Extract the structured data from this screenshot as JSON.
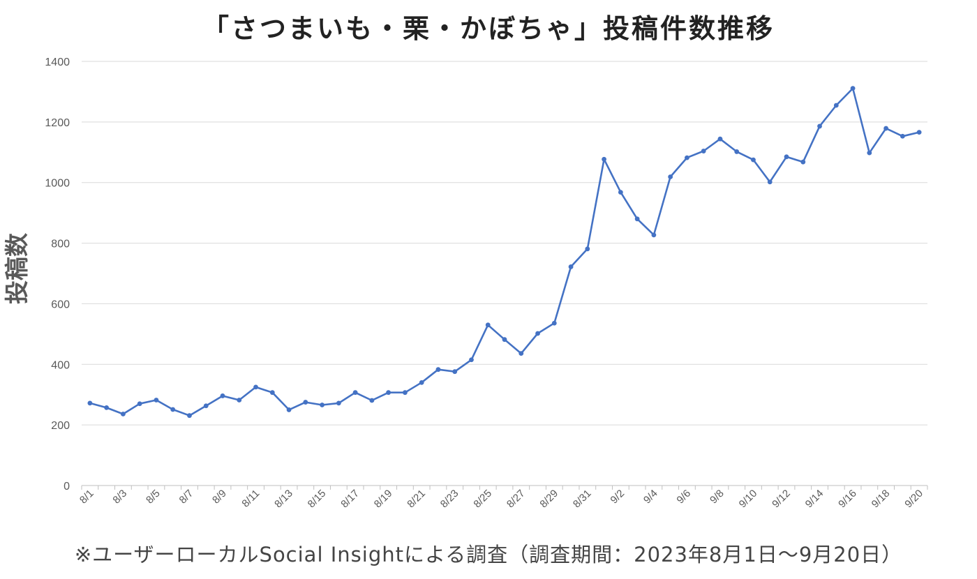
{
  "chart_data": {
    "type": "line",
    "title": "「さつまいも・栗・かぼちゃ」投稿件数推移",
    "xlabel": "",
    "ylabel": "投稿数",
    "ylim": [
      0,
      1400
    ],
    "yticks": [
      0,
      200,
      400,
      600,
      800,
      1000,
      1200,
      1400
    ],
    "grid": true,
    "legend": "none",
    "color": "#4472C4",
    "x": [
      "8/1",
      "8/2",
      "8/3",
      "8/4",
      "8/5",
      "8/6",
      "8/7",
      "8/8",
      "8/9",
      "8/10",
      "8/11",
      "8/12",
      "8/13",
      "8/14",
      "8/15",
      "8/16",
      "8/17",
      "8/18",
      "8/19",
      "8/20",
      "8/21",
      "8/22",
      "8/23",
      "8/24",
      "8/25",
      "8/26",
      "8/27",
      "8/28",
      "8/29",
      "8/30",
      "8/31",
      "9/1",
      "9/2",
      "9/3",
      "9/4",
      "9/5",
      "9/6",
      "9/7",
      "9/8",
      "9/9",
      "9/10",
      "9/11",
      "9/12",
      "9/13",
      "9/14",
      "9/15",
      "9/16",
      "9/17",
      "9/18",
      "9/19",
      "9/20"
    ],
    "x_tick_labels": [
      "8/1",
      "8/3",
      "8/5",
      "8/7",
      "8/9",
      "8/11",
      "8/13",
      "8/15",
      "8/17",
      "8/19",
      "8/21",
      "8/23",
      "8/25",
      "8/27",
      "8/29",
      "8/31",
      "9/2",
      "9/4",
      "9/6",
      "9/8",
      "9/10",
      "9/12",
      "9/14",
      "9/16",
      "9/18",
      "9/20"
    ],
    "values": [
      272,
      257,
      236,
      270,
      282,
      251,
      231,
      263,
      296,
      282,
      325,
      307,
      250,
      275,
      266,
      272,
      307,
      281,
      307,
      307,
      340,
      383,
      376,
      415,
      530,
      482,
      436,
      502,
      536,
      722,
      781,
      1077,
      968,
      880,
      827,
      1019,
      1082,
      1104,
      1144,
      1102,
      1075,
      1002,
      1085,
      1068,
      1186,
      1255,
      1311,
      1098,
      1179,
      1153,
      1166
    ]
  },
  "footnote": "※ユーザーローカルSocial Insightによる調査（調査期間：2023年8月1日～9月20日）"
}
